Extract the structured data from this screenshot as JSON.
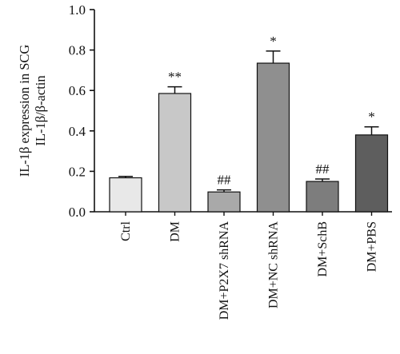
{
  "chart_data": {
    "type": "bar",
    "ylabel_lines": [
      "IL-1β expression in SCG",
      "IL-1β/β-actin"
    ],
    "ylim": [
      0,
      1.0
    ],
    "yticks": [
      "0.0",
      "0.2",
      "0.4",
      "0.6",
      "0.8",
      "1.0"
    ],
    "grid": false,
    "categories": [
      "Ctrl",
      "DM",
      "DM+P2X7 shRNA",
      "DM+NC shRNA",
      "DM+SchB",
      "DM+PBS"
    ],
    "values": [
      0.168,
      0.585,
      0.098,
      0.735,
      0.15,
      0.38
    ],
    "errors": [
      0.007,
      0.033,
      0.01,
      0.06,
      0.012,
      0.04
    ],
    "annotations": [
      "",
      "**",
      "##",
      "*",
      "##",
      "*"
    ],
    "colors": [
      "#e8e8e8",
      "#c8c8c8",
      "#a9a9a9",
      "#8f8f8f",
      "#7d7d7d",
      "#5e5e5e"
    ]
  }
}
